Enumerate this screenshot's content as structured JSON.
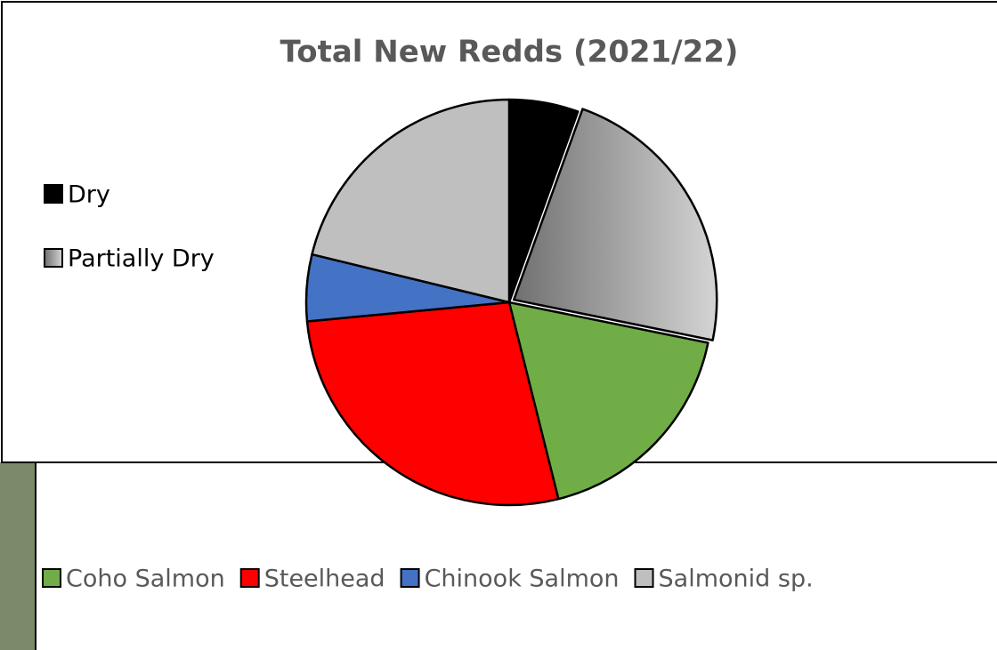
{
  "chart_data": {
    "type": "pie",
    "title": "Total New Redds (2021/22)",
    "categories": [
      "Dry",
      "Partially Dry",
      "Coho Salmon",
      "Steelhead",
      "Chinook Salmon",
      "Salmonid sp."
    ],
    "values": [
      5.5,
      22.7,
      17.9,
      27.4,
      5.3,
      21.2
    ],
    "colors": [
      "#000000",
      [
        "#707070",
        "#d4d4d4"
      ],
      "#70ad47",
      "#ff0000",
      "#4472c4",
      "#bfbfbf"
    ],
    "exploded": [
      1
    ]
  }
}
